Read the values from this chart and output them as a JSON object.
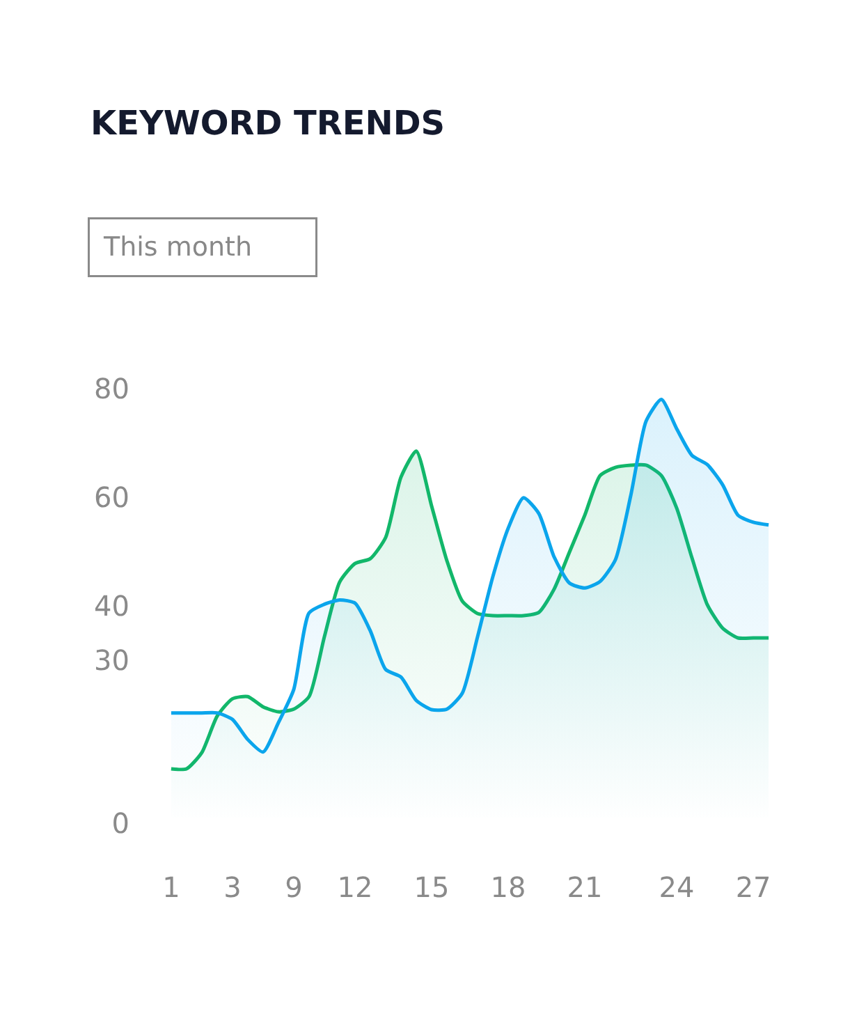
{
  "chart_data": {
    "type": "area",
    "title": "KEYWORD TRENDS",
    "annotations": [
      "This month"
    ],
    "categories": [
      "1",
      null,
      null,
      null,
      "3",
      null,
      null,
      null,
      "9",
      null,
      null,
      null,
      "12",
      null,
      null,
      null,
      null,
      "15",
      null,
      null,
      null,
      null,
      "18",
      null,
      null,
      null,
      null,
      "21",
      null,
      null,
      null,
      null,
      null,
      "24",
      null,
      null,
      null,
      null,
      "27",
      null
    ],
    "ylim": [
      0,
      80
    ],
    "yticks": [
      0,
      30,
      40,
      60,
      80
    ],
    "marker": "none",
    "line_style": "solid",
    "series": [
      {
        "color": "#12b76a",
        "values": [
          10,
          10,
          13.0,
          19.7,
          22.9,
          23.3,
          21.4,
          20.5,
          21.0,
          23.3,
          34.3,
          44.4,
          47.8,
          48.7,
          52.6,
          63.7,
          68.5,
          58.4,
          48.3,
          40.9,
          38.6,
          38.2,
          38.2,
          38.2,
          38.8,
          43.1,
          49.9,
          56.7,
          64.0,
          65.5,
          65.9,
          65.9,
          64.0,
          58.0,
          48.8,
          40.2,
          35.9,
          34.1,
          34.1,
          34.1
        ]
      },
      {
        "color": "#0ba5ec",
        "values": [
          20.3,
          20.3,
          20.3,
          20.3,
          19.1,
          15.4,
          13.1,
          18.5,
          24.6,
          38.7,
          40.3,
          41.1,
          40.5,
          35.4,
          28.3,
          26.9,
          22.6,
          20.9,
          21.0,
          23.9,
          34.3,
          45.4,
          54.3,
          59.9,
          57.0,
          49.0,
          44.2,
          43.3,
          44.5,
          48.5,
          60.3,
          74.0,
          78.0,
          72.6,
          67.7,
          66.0,
          62.3,
          56.7,
          55.4,
          54.9
        ]
      }
    ]
  }
}
